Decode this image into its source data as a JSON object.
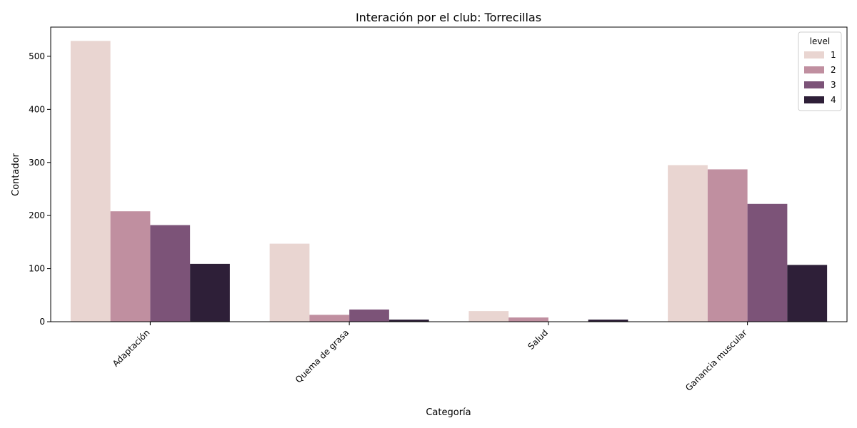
{
  "chart_data": {
    "type": "bar",
    "title": "Interación por el club: Torrecillas",
    "xlabel": "Categoría",
    "ylabel": "Contador",
    "categories": [
      "Adaptación",
      "Quema de grasa",
      "Salud",
      "Ganancia muscular"
    ],
    "ylim": [
      0,
      555
    ],
    "yticks": [
      0,
      100,
      200,
      300,
      400,
      500
    ],
    "grid": false,
    "legend": {
      "title": "level",
      "position": "top-right"
    },
    "series": [
      {
        "name": "1",
        "color": "#e9d5d1",
        "values": [
          529,
          147,
          20,
          295
        ]
      },
      {
        "name": "2",
        "color": "#c08fa0",
        "values": [
          208,
          13,
          8,
          287
        ]
      },
      {
        "name": "3",
        "color": "#7c5378",
        "values": [
          182,
          23,
          0,
          222
        ]
      },
      {
        "name": "4",
        "color": "#2e1f38",
        "values": [
          109,
          4,
          4,
          107
        ]
      }
    ]
  }
}
